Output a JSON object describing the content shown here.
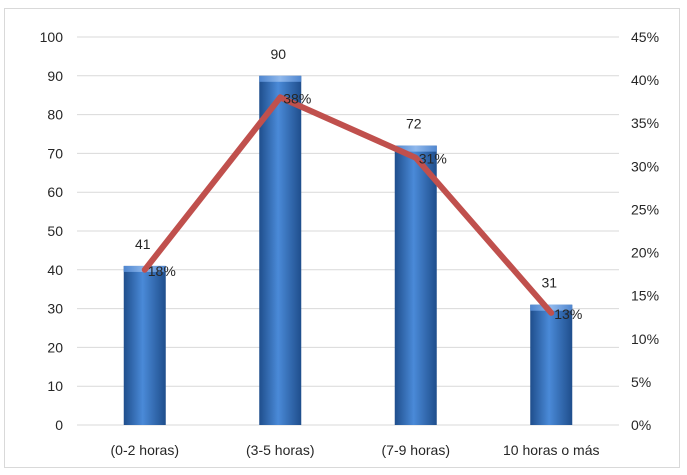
{
  "chart_data": {
    "type": "bar",
    "categories": [
      "(0-2 horas)",
      "(3-5 horas)",
      "(7-9 horas)",
      "10 horas o más"
    ],
    "series": [
      {
        "type": "bar",
        "values": [
          41,
          90,
          72,
          31
        ],
        "color": "#3a75c4",
        "labels": [
          "41",
          "90",
          "72",
          "31"
        ]
      },
      {
        "type": "line",
        "axis": "right",
        "values": [
          18,
          38,
          31,
          13
        ],
        "color": "#c0504d",
        "labels": [
          "18%",
          "38%",
          "31%",
          "13%"
        ]
      }
    ],
    "y_left": {
      "min": 0,
      "max": 100,
      "ticks": [
        "0",
        "10",
        "20",
        "30",
        "40",
        "50",
        "60",
        "70",
        "80",
        "90",
        "100"
      ]
    },
    "y_right": {
      "min": 0,
      "max": 45,
      "ticks": [
        "0%",
        "5%",
        "10%",
        "15%",
        "20%",
        "25%",
        "30%",
        "35%",
        "40%",
        "45%"
      ]
    },
    "grid": true,
    "legend": "none"
  }
}
